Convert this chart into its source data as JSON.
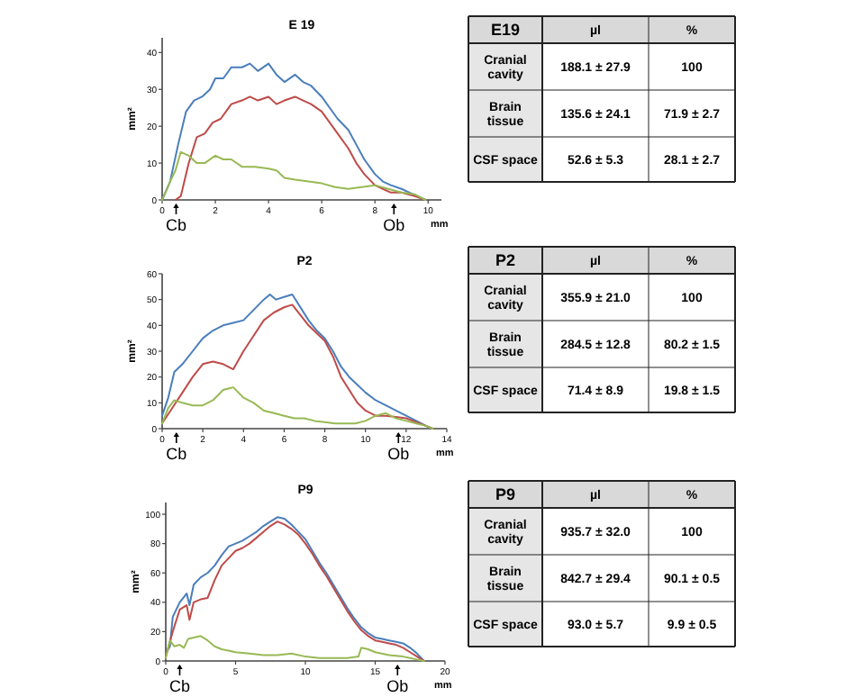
{
  "chart_data": [
    {
      "type": "line",
      "title": "E 19",
      "xlabel": "mm",
      "ylabel": "mm²",
      "xlim": [
        0,
        10.5
      ],
      "xticks": [
        0,
        2,
        4,
        6,
        8,
        10
      ],
      "ylim": [
        0,
        44
      ],
      "yticks": [
        0,
        10,
        20,
        30,
        40
      ],
      "annotations": [
        "Cb",
        "Ob"
      ],
      "series": [
        {
          "color": "#4a7ebb",
          "x": [
            0,
            0.3,
            0.6,
            0.9,
            1.2,
            1.5,
            1.8,
            2,
            2.3,
            2.6,
            3,
            3.3,
            3.6,
            4,
            4.3,
            4.6,
            5,
            5.3,
            5.6,
            6,
            6.3,
            6.6,
            7,
            7.3,
            7.6,
            8,
            8.3,
            8.6,
            9,
            9.3,
            9.6,
            9.9
          ],
          "values": [
            0,
            5,
            15,
            24,
            27,
            28,
            30,
            33,
            33,
            36,
            36,
            37,
            35,
            37,
            34,
            32,
            34,
            32,
            31,
            28,
            25,
            22,
            19,
            15,
            11,
            7,
            5,
            4,
            3,
            2,
            1,
            0
          ]
        },
        {
          "color": "#be4b48",
          "x": [
            0.5,
            0.7,
            1,
            1.3,
            1.6,
            1.9,
            2.2,
            2.6,
            3,
            3.3,
            3.6,
            4,
            4.3,
            4.6,
            5,
            5.3,
            5.6,
            6,
            6.3,
            6.6,
            7,
            7.3,
            7.6,
            8,
            8.3,
            8.6,
            9,
            9.5,
            9.9
          ],
          "values": [
            0,
            1,
            10,
            17,
            18,
            21,
            22,
            26,
            27,
            28,
            27,
            28,
            26,
            27,
            28,
            27,
            26,
            24,
            21,
            18,
            14,
            10,
            7,
            4,
            3,
            2,
            2,
            1,
            0
          ]
        },
        {
          "color": "#98b954",
          "x": [
            0,
            0.3,
            0.5,
            0.7,
            1,
            1.3,
            1.6,
            2,
            2.3,
            2.6,
            3,
            3.5,
            4,
            4.3,
            4.6,
            5,
            5.5,
            6,
            6.5,
            7,
            7.5,
            8,
            8.5,
            9,
            9.5,
            9.9
          ],
          "values": [
            0,
            5,
            8,
            13,
            12,
            10,
            10,
            12,
            11,
            11,
            9,
            9,
            8.5,
            8,
            6,
            5.5,
            5,
            4.5,
            3.5,
            3,
            3.5,
            4,
            3,
            2,
            1.5,
            0
          ]
        }
      ]
    },
    {
      "type": "other",
      "title": "E19",
      "categories": [
        "µl",
        "%"
      ],
      "y_categories": [
        "Cranial cavity",
        "Brain tissue",
        "CSF space"
      ],
      "cell_labels": [
        [
          "188.1 ± 27.9",
          "100"
        ],
        [
          "135.6 ± 24.1",
          "71.9 ± 2.7"
        ],
        [
          "52.6 ± 5.3",
          "28.1 ± 2.7"
        ]
      ]
    },
    {
      "type": "line",
      "title": "P2",
      "xlabel": "mm",
      "ylabel": "mm²",
      "xlim": [
        0,
        14
      ],
      "xticks": [
        0,
        2,
        4,
        6,
        8,
        10,
        12,
        14
      ],
      "ylim": [
        0,
        60
      ],
      "yticks": [
        0,
        10,
        20,
        30,
        40,
        50,
        60
      ],
      "annotations": [
        "Cb",
        "Ob"
      ],
      "series": [
        {
          "color": "#4a7ebb",
          "x": [
            0,
            0.3,
            0.6,
            1,
            1.5,
            2,
            2.5,
            3,
            3.5,
            4,
            4.5,
            5,
            5.3,
            5.6,
            6,
            6.4,
            6.8,
            7.2,
            7.6,
            8,
            8.4,
            8.8,
            9.2,
            9.6,
            10,
            10.5,
            11,
            11.5,
            12,
            12.5,
            13,
            13.3
          ],
          "values": [
            5,
            12,
            22,
            25,
            30,
            35,
            38,
            40,
            41,
            42,
            46,
            50,
            52,
            50,
            51,
            52,
            47,
            42,
            38,
            35,
            30,
            24,
            20,
            17,
            14,
            11,
            9,
            7,
            5,
            3,
            1,
            0
          ]
        },
        {
          "color": "#be4b48",
          "x": [
            0,
            0.5,
            1,
            1.5,
            2,
            2.5,
            3,
            3.5,
            4,
            4.5,
            5,
            5.5,
            6,
            6.4,
            6.8,
            7.2,
            7.6,
            8,
            8.4,
            8.8,
            9.2,
            9.6,
            10,
            10.5,
            11,
            11.5,
            12,
            12.5,
            13,
            13.3
          ],
          "values": [
            2,
            8,
            14,
            20,
            25,
            26,
            25,
            23,
            30,
            36,
            42,
            45,
            47,
            48,
            44,
            40,
            37,
            34,
            28,
            20,
            15,
            10,
            7,
            5,
            5,
            4.5,
            4,
            2.5,
            1,
            0
          ]
        },
        {
          "color": "#98b954",
          "x": [
            0,
            0.3,
            0.6,
            1,
            1.5,
            2,
            2.5,
            3,
            3.5,
            4,
            4.5,
            5,
            5.5,
            6,
            6.5,
            7,
            7.5,
            8,
            8.5,
            9,
            9.5,
            10,
            10.5,
            11,
            11.5,
            12,
            12.5,
            13,
            13.3
          ],
          "values": [
            2,
            8,
            11,
            10,
            9,
            9,
            11,
            15,
            16,
            12,
            10,
            7,
            6,
            5,
            4,
            4,
            3,
            2.5,
            2,
            2,
            2,
            3,
            5,
            6,
            4,
            3,
            2,
            1,
            0
          ]
        }
      ]
    },
    {
      "type": "other",
      "title": "P2",
      "categories": [
        "µl",
        "%"
      ],
      "y_categories": [
        "Cranial cavity",
        "Brain tissue",
        "CSF space"
      ],
      "cell_labels": [
        [
          "355.9 ± 21.0",
          "100"
        ],
        [
          "284.5 ± 12.8",
          "80.2 ± 1.5"
        ],
        [
          "71.4 ± 8.9",
          "19.8 ± 1.5"
        ]
      ]
    },
    {
      "type": "line",
      "title": "P9",
      "xlabel": "mm",
      "ylabel": "mm²",
      "xlim": [
        0,
        20
      ],
      "xticks": [
        0,
        5,
        10,
        15,
        20
      ],
      "ylim": [
        0,
        108
      ],
      "yticks": [
        0,
        20,
        40,
        60,
        80,
        100
      ],
      "annotations": [
        "Cb",
        "Ob"
      ],
      "series": [
        {
          "color": "#4a7ebb",
          "x": [
            0,
            0.3,
            0.5,
            1,
            1.5,
            1.7,
            2,
            2.5,
            3,
            3.5,
            4,
            4.5,
            5,
            5.5,
            6,
            6.5,
            7,
            7.5,
            8,
            8.5,
            9,
            9.5,
            10,
            10.5,
            11,
            11.5,
            12,
            12.5,
            13,
            13.5,
            14,
            14.5,
            15,
            15.5,
            16,
            16.5,
            17,
            17.5,
            18,
            18.5
          ],
          "values": [
            5,
            10,
            30,
            40,
            46,
            38,
            52,
            57,
            60,
            65,
            72,
            78,
            80,
            82,
            85,
            88,
            92,
            95,
            98,
            97,
            93,
            88,
            83,
            75,
            67,
            60,
            52,
            44,
            36,
            29,
            23,
            19,
            16,
            15,
            14,
            13,
            12,
            9,
            5,
            0
          ]
        },
        {
          "color": "#be4b48",
          "x": [
            0,
            0.5,
            1,
            1.5,
            1.7,
            2,
            2.5,
            3,
            3.5,
            4,
            4.5,
            5,
            5.5,
            6,
            6.5,
            7,
            7.5,
            8,
            8.5,
            9,
            9.5,
            10,
            10.5,
            11,
            11.5,
            12,
            12.5,
            13,
            13.5,
            14,
            14.5,
            15,
            15.5,
            16,
            16.5,
            17,
            17.5,
            18,
            18.5
          ],
          "values": [
            3,
            20,
            35,
            38,
            28,
            40,
            42,
            43,
            55,
            65,
            70,
            75,
            77,
            80,
            84,
            88,
            92,
            95,
            93,
            90,
            86,
            80,
            73,
            65,
            58,
            50,
            42,
            34,
            27,
            21,
            17,
            14,
            13,
            12,
            11,
            9,
            6,
            3,
            0
          ]
        },
        {
          "color": "#98b954",
          "x": [
            0,
            0.3,
            0.6,
            1,
            1.3,
            1.6,
            2,
            2.5,
            3,
            3.5,
            4,
            5,
            6,
            7,
            8,
            9,
            10,
            11,
            12,
            13,
            13.8,
            14,
            14.5,
            15,
            16,
            17,
            17.5,
            18,
            18.5
          ],
          "values": [
            2,
            14,
            10,
            11,
            9,
            15,
            16,
            17,
            14,
            10,
            8,
            6,
            5,
            4,
            4,
            5,
            3,
            2,
            2,
            2,
            3,
            9,
            8,
            6,
            4,
            3,
            2,
            1,
            0
          ]
        }
      ]
    },
    {
      "type": "other",
      "title": "P9",
      "categories": [
        "µl",
        "%"
      ],
      "y_categories": [
        "Cranial cavity",
        "Brain tissue",
        "CSF space"
      ],
      "cell_labels": [
        [
          "935.7 ± 32.0",
          "100"
        ],
        [
          "842.7 ± 29.4",
          "90.1 ± 0.5"
        ],
        [
          "93.0 ± 5.7",
          "9.9 ± 0.5"
        ]
      ]
    }
  ]
}
